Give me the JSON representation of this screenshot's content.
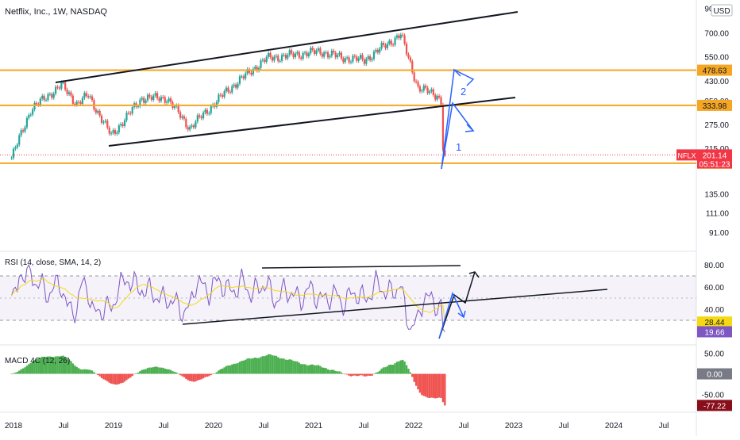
{
  "header": {
    "symbol_title": "Netflix, Inc., 1W, NASDAQ"
  },
  "currency_button": "USD",
  "price_axis": {
    "ticks": [
      {
        "label": "900.00",
        "value": 900
      },
      {
        "label": "700.00",
        "value": 700
      },
      {
        "label": "550.00",
        "value": 550
      },
      {
        "label": "430.00",
        "value": 430
      },
      {
        "label": "350.00",
        "value": 350
      },
      {
        "label": "275.00",
        "value": 275
      },
      {
        "label": "215.00",
        "value": 215
      },
      {
        "label": "135.00",
        "value": 135
      },
      {
        "label": "111.00",
        "value": 111
      },
      {
        "label": "91.00",
        "value": 91
      }
    ],
    "levels": [
      {
        "label": "478.63",
        "value": 478.63,
        "color": "#f5a623"
      },
      {
        "label": "333.98",
        "value": 333.98,
        "color": "#f5a623"
      },
      {
        "label": "184.82",
        "value": 184.82,
        "color": "#f5a623"
      }
    ],
    "last_price": {
      "symbol": "NFLX",
      "price": "201.14",
      "countdown": "05:51:23",
      "value": 201.14,
      "color": "#f23645"
    }
  },
  "rsi": {
    "title": "RSI (14, close, SMA, 14, 2)",
    "ticks": [
      {
        "label": "80.00",
        "value": 80
      },
      {
        "label": "60.00",
        "value": 60
      },
      {
        "label": "40.00",
        "value": 40
      }
    ],
    "labels": [
      {
        "label": "28.44",
        "value": 28.44,
        "color": "#f5d915",
        "text_color": "#131722"
      },
      {
        "label": "19.66",
        "value": 19.66,
        "color": "#7e57c2",
        "text_color": "#ffffff"
      }
    ]
  },
  "macd": {
    "title": "MACD 4C (12, 26)",
    "ticks": [
      {
        "label": "50.00",
        "value": 50
      },
      {
        "label": "-50.00",
        "value": -50
      }
    ],
    "labels": [
      {
        "label": "0.00",
        "value": 0,
        "color": "#787b86"
      },
      {
        "label": "-77.22",
        "value": -77.22,
        "color": "#880e1b"
      }
    ]
  },
  "time_axis": [
    "2018",
    "Jul",
    "2019",
    "Jul",
    "2020",
    "Jul",
    "2021",
    "Jul",
    "2022",
    "Jul",
    "2023",
    "Jul",
    "2024",
    "Jul"
  ],
  "annotations": {
    "wave_1": "1",
    "wave_2": "2"
  },
  "colors": {
    "up": "#26a69a",
    "down": "#ef5350",
    "drawing": "#131722",
    "projection": "#2962ff",
    "level": "#f5a623",
    "rsi_line": "#7e57c2",
    "rsi_ma": "#f5d915",
    "macd_up": "#4caf50",
    "macd_down": "#ef5350"
  },
  "chart_data": {
    "type": "candlestick",
    "title": "Netflix, Inc., 1W, NASDAQ",
    "y_scale": "log",
    "ylim": [
      82,
      920
    ],
    "x_range": [
      "2017-12",
      "2024-12"
    ],
    "price_path": [
      {
        "date": "2017-12-25",
        "close": 195
      },
      {
        "date": "2018-03-05",
        "close": 320
      },
      {
        "date": "2018-06-25",
        "close": 412
      },
      {
        "date": "2018-08-20",
        "close": 340
      },
      {
        "date": "2018-10-01",
        "close": 370
      },
      {
        "date": "2018-12-24",
        "close": 245
      },
      {
        "date": "2019-04-15",
        "close": 360
      },
      {
        "date": "2019-07-15",
        "close": 360
      },
      {
        "date": "2019-10-07",
        "close": 265
      },
      {
        "date": "2020-02-17",
        "close": 385
      },
      {
        "date": "2020-04-13",
        "close": 440
      },
      {
        "date": "2020-07-13",
        "close": 540
      },
      {
        "date": "2021-01-25",
        "close": 580
      },
      {
        "date": "2021-04-12",
        "close": 545
      },
      {
        "date": "2021-07-05",
        "close": 530
      },
      {
        "date": "2021-11-15",
        "close": 690
      },
      {
        "date": "2022-01-17",
        "close": 400
      },
      {
        "date": "2022-03-28",
        "close": 370
      },
      {
        "date": "2022-04-11",
        "close": 348
      },
      {
        "date": "2022-04-18",
        "close": 217
      },
      {
        "date": "2022-04-25",
        "close": 201.14
      }
    ],
    "horizontal_levels": [
      478.63,
      333.98,
      184.82
    ],
    "rsi": {
      "ylim": [
        10,
        90
      ],
      "bands": [
        70,
        30
      ],
      "last": 19.66,
      "ma_last": 28.44
    },
    "macd": {
      "ylim": [
        -90,
        65
      ],
      "last": -77.22
    }
  }
}
